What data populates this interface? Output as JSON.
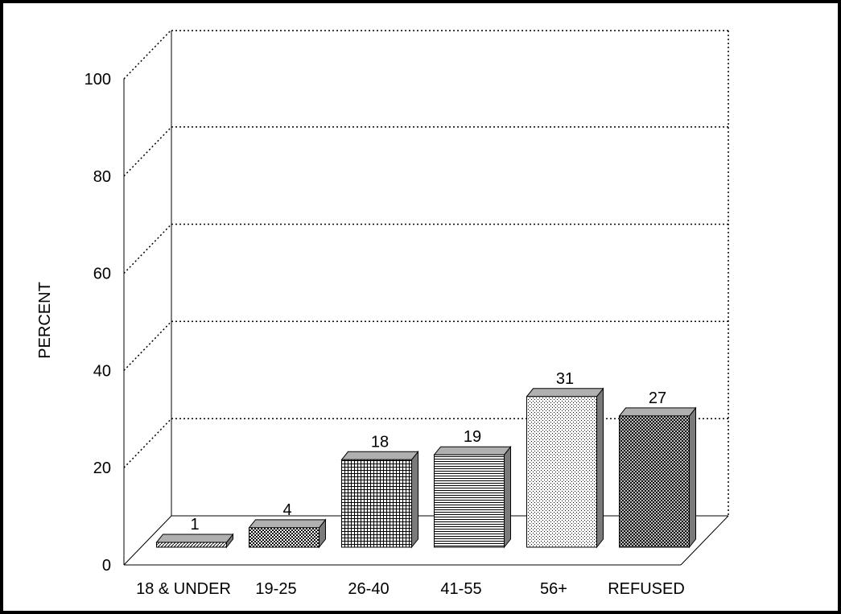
{
  "chart_data": {
    "type": "bar",
    "title": "",
    "xlabel": "",
    "ylabel": "PERCENT",
    "ylim": [
      0,
      100
    ],
    "yticks": [
      0,
      20,
      40,
      60,
      80,
      100
    ],
    "grid": true,
    "categories": [
      "18 & UNDER",
      "19-25",
      "26-40",
      "41-55",
      "56+",
      "REFUSED"
    ],
    "values": [
      1,
      4,
      18,
      19,
      31,
      27
    ],
    "data_labels": [
      "1",
      "4",
      "18",
      "19",
      "31",
      "27"
    ],
    "bar_patterns": [
      "diagonal-lines",
      "checker-dots",
      "grid",
      "horizontal-lines",
      "fine-dots",
      "crosshatch"
    ]
  }
}
